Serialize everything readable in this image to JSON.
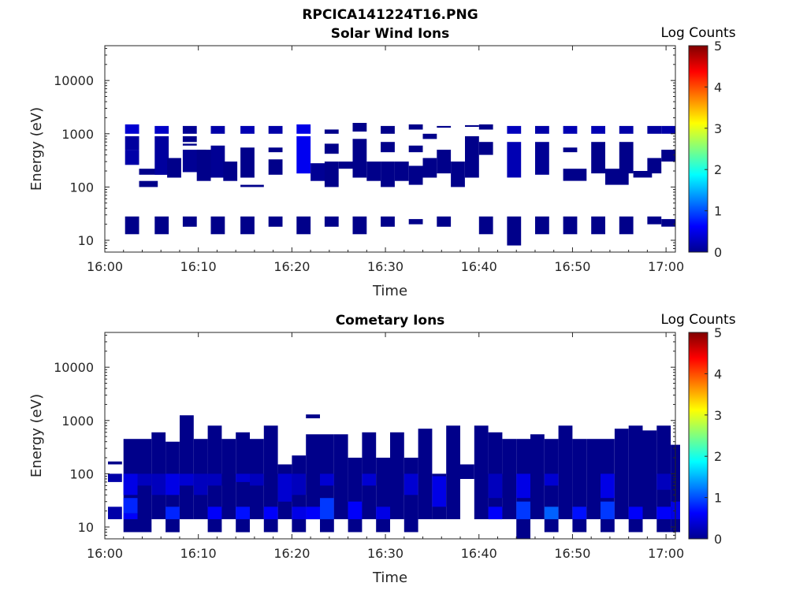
{
  "figure_title": "RPCICA141224T16.PNG",
  "colors": {
    "cmap": "jet",
    "axis": "#262626",
    "background": "#ffffff"
  },
  "chart_data": [
    {
      "type": "heatmap",
      "title": "Solar Wind Ions",
      "xlabel": "Time",
      "ylabel": "Energy (eV)",
      "yscale": "log",
      "xlim": [
        "16:00",
        "17:01"
      ],
      "ylim": [
        6,
        45000
      ],
      "xticks": [
        "16:00",
        "16:10",
        "16:20",
        "16:30",
        "16:40",
        "16:50",
        "17:00"
      ],
      "yticks": [
        "10",
        "100",
        "1000",
        "10000"
      ],
      "colorbar": {
        "label": "Log Counts",
        "range": [
          0,
          5
        ],
        "ticks": [
          "0",
          "1",
          "2",
          "3",
          "4",
          "5"
        ]
      },
      "cells": [
        [
          "16:02:10",
          1.5,
          1000,
          1500,
          0.4
        ],
        [
          "16:02:10",
          1.5,
          500,
          900,
          0.15
        ],
        [
          "16:02:10",
          1.5,
          260,
          500,
          0.2
        ],
        [
          "16:02:10",
          1.5,
          13,
          28,
          0.05
        ],
        [
          "16:03:40",
          2,
          100,
          130,
          0.05
        ],
        [
          "16:03:40",
          3,
          170,
          220,
          0.05
        ],
        [
          "16:05:20",
          1.5,
          1000,
          1400,
          0.35
        ],
        [
          "16:05:20",
          1.5,
          170,
          900,
          0.15
        ],
        [
          "16:05:20",
          1.5,
          13,
          28,
          0.05
        ],
        [
          "16:06:40",
          1.5,
          150,
          350,
          0.05
        ],
        [
          "16:08:20",
          1.5,
          1000,
          1400,
          0.1
        ],
        [
          "16:08:20",
          1.5,
          700,
          900,
          0.05
        ],
        [
          "16:08:20",
          1.5,
          600,
          650,
          0.05
        ],
        [
          "16:08:20",
          2.5,
          190,
          500,
          0.1
        ],
        [
          "16:08:20",
          1.5,
          18,
          28,
          0.05
        ],
        [
          "16:09:50",
          1.5,
          130,
          500,
          0.05
        ],
        [
          "16:11:20",
          1.5,
          1000,
          1400,
          0.2
        ],
        [
          "16:11:20",
          1.5,
          150,
          600,
          0.1
        ],
        [
          "16:11:20",
          1.5,
          13,
          28,
          0.05
        ],
        [
          "16:12:40",
          1.5,
          130,
          300,
          0.05
        ],
        [
          "16:14:30",
          1.5,
          1000,
          1400,
          0.25
        ],
        [
          "16:14:30",
          1.5,
          150,
          550,
          0.05
        ],
        [
          "16:14:30",
          2.5,
          100,
          110,
          0.05
        ],
        [
          "16:14:30",
          1.5,
          13,
          28,
          0.05
        ],
        [
          "16:17:30",
          1.5,
          1000,
          1400,
          0.2
        ],
        [
          "16:17:30",
          1.5,
          450,
          550,
          0.05
        ],
        [
          "16:17:30",
          1.5,
          170,
          330,
          0.05
        ],
        [
          "16:17:30",
          1.5,
          18,
          28,
          0.05
        ],
        [
          "16:20:30",
          1.5,
          1000,
          1500,
          0.5
        ],
        [
          "16:20:30",
          1.5,
          180,
          900,
          0.55
        ],
        [
          "16:20:30",
          1.5,
          13,
          28,
          0.05
        ],
        [
          "16:22:00",
          2,
          130,
          280,
          0.1
        ],
        [
          "16:23:30",
          1.5,
          1000,
          1200,
          0.05
        ],
        [
          "16:23:30",
          1.5,
          420,
          650,
          0.05
        ],
        [
          "16:23:30",
          1.5,
          100,
          300,
          0.05
        ],
        [
          "16:23:30",
          1.5,
          18,
          28,
          0.05
        ],
        [
          "16:25:00",
          1.5,
          220,
          300,
          0.05
        ],
        [
          "16:26:30",
          1.5,
          1100,
          1600,
          0.05
        ],
        [
          "16:26:30",
          1.5,
          150,
          800,
          0.05
        ],
        [
          "16:26:30",
          1.5,
          13,
          28,
          0.05
        ],
        [
          "16:28:00",
          1.5,
          130,
          300,
          0.05
        ],
        [
          "16:29:30",
          1.5,
          1000,
          1400,
          0.05
        ],
        [
          "16:29:30",
          1.5,
          450,
          700,
          0.05
        ],
        [
          "16:29:30",
          1.5,
          100,
          300,
          0.05
        ],
        [
          "16:29:30",
          1.5,
          18,
          28,
          0.05
        ],
        [
          "16:31:00",
          1.5,
          130,
          300,
          0.05
        ],
        [
          "16:32:30",
          1.5,
          1200,
          1500,
          0.05
        ],
        [
          "16:32:30",
          1.5,
          450,
          600,
          0.05
        ],
        [
          "16:32:30",
          1.5,
          110,
          250,
          0.05
        ],
        [
          "16:32:30",
          1.5,
          20,
          25,
          0.05
        ],
        [
          "16:34:00",
          1.5,
          800,
          1000,
          0.05
        ],
        [
          "16:34:00",
          1.5,
          150,
          350,
          0.05
        ],
        [
          "16:35:30",
          1.5,
          1300,
          1400,
          0.05
        ],
        [
          "16:35:30",
          1.5,
          180,
          500,
          0.05
        ],
        [
          "16:35:30",
          1.5,
          18,
          28,
          0.05
        ],
        [
          "16:37:00",
          1.5,
          100,
          300,
          0.05
        ],
        [
          "16:38:30",
          1.5,
          1350,
          1450,
          0.05
        ],
        [
          "16:38:30",
          1.5,
          150,
          900,
          0.05
        ],
        [
          "16:40:00",
          1.5,
          1200,
          1500,
          0.05
        ],
        [
          "16:40:00",
          1.5,
          400,
          700,
          0.05
        ],
        [
          "16:40:00",
          1.5,
          13,
          28,
          0.05
        ],
        [
          "16:43:00",
          1.5,
          1000,
          1400,
          0.3
        ],
        [
          "16:43:00",
          1.5,
          150,
          700,
          0.25
        ],
        [
          "16:43:00",
          1.5,
          8,
          28,
          0.05
        ],
        [
          "16:46:00",
          1.5,
          1000,
          1400,
          0.2
        ],
        [
          "16:46:00",
          1.5,
          170,
          700,
          0.1
        ],
        [
          "16:46:00",
          1.5,
          13,
          28,
          0.05
        ],
        [
          "16:49:00",
          1.5,
          1000,
          1400,
          0.25
        ],
        [
          "16:49:00",
          1.5,
          450,
          550,
          0.05
        ],
        [
          "16:49:00",
          2.5,
          130,
          220,
          0.05
        ],
        [
          "16:49:00",
          1.5,
          13,
          28,
          0.05
        ],
        [
          "16:52:00",
          1.5,
          1000,
          1400,
          0.25
        ],
        [
          "16:52:00",
          1.5,
          180,
          700,
          0.05
        ],
        [
          "16:52:00",
          1.5,
          13,
          28,
          0.05
        ],
        [
          "16:53:30",
          2.5,
          110,
          220,
          0.05
        ],
        [
          "16:55:00",
          1.5,
          1000,
          1400,
          0.2
        ],
        [
          "16:55:00",
          1.5,
          180,
          700,
          0.05
        ],
        [
          "16:55:00",
          1.5,
          13,
          28,
          0.05
        ],
        [
          "16:56:30",
          2,
          150,
          200,
          0.05
        ],
        [
          "16:58:00",
          1.5,
          1000,
          1400,
          0.15
        ],
        [
          "16:58:00",
          1.5,
          180,
          350,
          0.05
        ],
        [
          "16:58:00",
          1.5,
          20,
          28,
          0.05
        ],
        [
          "16:59:30",
          1.5,
          1000,
          1400,
          0.2
        ],
        [
          "16:59:30",
          1.5,
          300,
          500,
          0.05
        ],
        [
          "16:59:30",
          1.5,
          18,
          25,
          0.05
        ]
      ]
    },
    {
      "type": "heatmap",
      "title": "Cometary Ions",
      "xlabel": "Time",
      "ylabel": "Energy (eV)",
      "yscale": "log",
      "xlim": [
        "16:00",
        "17:01"
      ],
      "ylim": [
        6,
        45000
      ],
      "xticks": [
        "16:00",
        "16:10",
        "16:20",
        "16:30",
        "16:40",
        "16:50",
        "17:00"
      ],
      "yticks": [
        "10",
        "100",
        "1000",
        "10000"
      ],
      "colorbar": {
        "label": "Log Counts",
        "range": [
          0,
          5
        ],
        "ticks": [
          "0",
          "1",
          "2",
          "3",
          "4",
          "5"
        ]
      },
      "cells": [
        [
          "16:00:20",
          1.5,
          150,
          170,
          0.05
        ],
        [
          "16:00:20",
          1.5,
          70,
          100,
          0.2
        ],
        [
          "16:00:20",
          1.5,
          14,
          24,
          0.2
        ],
        [
          "16:02:00",
          1.5,
          8,
          450,
          0.05
        ],
        [
          "16:02:00",
          1.5,
          40,
          100,
          0.5
        ],
        [
          "16:02:00",
          1.5,
          18,
          35,
          0.8
        ],
        [
          "16:02:00",
          1.5,
          14,
          18,
          0.6
        ],
        [
          "16:03:30",
          1.5,
          8,
          450,
          0.05
        ],
        [
          "16:03:30",
          1.5,
          60,
          100,
          0.3
        ],
        [
          "16:05:00",
          1.5,
          14,
          600,
          0.05
        ],
        [
          "16:05:00",
          1.5,
          40,
          100,
          0.3
        ],
        [
          "16:06:30",
          1.5,
          8,
          400,
          0.05
        ],
        [
          "16:06:30",
          1.5,
          14,
          24,
          0.8
        ],
        [
          "16:06:30",
          1.5,
          40,
          100,
          0.5
        ],
        [
          "16:08:00",
          1.5,
          14,
          1250,
          0.05
        ],
        [
          "16:08:00",
          1.5,
          60,
          100,
          0.4
        ],
        [
          "16:09:30",
          1.5,
          14,
          450,
          0.05
        ],
        [
          "16:09:30",
          1.5,
          40,
          100,
          0.3
        ],
        [
          "16:11:00",
          1.5,
          8,
          800,
          0.05
        ],
        [
          "16:11:00",
          1.5,
          14,
          24,
          0.6
        ],
        [
          "16:11:00",
          1.5,
          60,
          100,
          0.3
        ],
        [
          "16:12:30",
          1.5,
          14,
          450,
          0.05
        ],
        [
          "16:14:00",
          1.5,
          8,
          600,
          0.05
        ],
        [
          "16:14:00",
          1.5,
          14,
          24,
          0.7
        ],
        [
          "16:14:00",
          1.5,
          70,
          100,
          0.4
        ],
        [
          "16:15:30",
          1.5,
          14,
          450,
          0.05
        ],
        [
          "16:15:30",
          1.5,
          60,
          100,
          0.3
        ],
        [
          "16:17:00",
          1.5,
          8,
          800,
          0.05
        ],
        [
          "16:17:00",
          1.5,
          14,
          24,
          0.6
        ],
        [
          "16:18:30",
          1.5,
          14,
          150,
          0.05
        ],
        [
          "16:18:30",
          1.5,
          30,
          100,
          0.4
        ],
        [
          "16:20:00",
          1.5,
          8,
          220,
          0.05
        ],
        [
          "16:20:00",
          1.5,
          14,
          24,
          0.5
        ],
        [
          "16:20:00",
          1.5,
          40,
          100,
          0.3
        ],
        [
          "16:21:30",
          1.5,
          1100,
          1300,
          0.05
        ],
        [
          "16:21:30",
          1.5,
          14,
          550,
          0.05
        ],
        [
          "16:21:30",
          1.5,
          14,
          24,
          0.6
        ],
        [
          "16:23:00",
          1.5,
          8,
          550,
          0.05
        ],
        [
          "16:23:00",
          1.5,
          14,
          35,
          0.9
        ],
        [
          "16:23:00",
          1.5,
          60,
          100,
          0.4
        ],
        [
          "16:24:30",
          1.5,
          14,
          550,
          0.05
        ],
        [
          "16:26:00",
          1.5,
          8,
          200,
          0.05
        ],
        [
          "16:26:00",
          1.5,
          14,
          30,
          0.6
        ],
        [
          "16:27:30",
          1.5,
          14,
          600,
          0.05
        ],
        [
          "16:27:30",
          1.5,
          60,
          100,
          0.4
        ],
        [
          "16:29:00",
          1.5,
          8,
          200,
          0.05
        ],
        [
          "16:29:00",
          1.5,
          14,
          24,
          0.5
        ],
        [
          "16:30:30",
          1.5,
          14,
          600,
          0.05
        ],
        [
          "16:32:00",
          1.5,
          8,
          200,
          0.05
        ],
        [
          "16:32:00",
          1.5,
          40,
          100,
          0.4
        ],
        [
          "16:33:30",
          1.5,
          14,
          700,
          0.05
        ],
        [
          "16:35:00",
          1.5,
          14,
          100,
          0.05
        ],
        [
          "16:35:00",
          1.5,
          24,
          90,
          0.5
        ],
        [
          "16:36:30",
          1.5,
          14,
          800,
          0.05
        ],
        [
          "16:38:00",
          1.5,
          80,
          150,
          0.05
        ],
        [
          "16:39:30",
          1.5,
          14,
          800,
          0.05
        ],
        [
          "16:41:00",
          1.5,
          14,
          600,
          0.05
        ],
        [
          "16:41:00",
          1.5,
          14,
          24,
          0.6
        ],
        [
          "16:41:00",
          1.5,
          35,
          100,
          0.3
        ],
        [
          "16:42:30",
          1.5,
          14,
          450,
          0.05
        ],
        [
          "16:44:00",
          1.5,
          6,
          450,
          0.05
        ],
        [
          "16:44:00",
          1.5,
          14,
          30,
          0.9
        ],
        [
          "16:44:00",
          1.5,
          35,
          100,
          0.5
        ],
        [
          "16:45:30",
          1.5,
          14,
          550,
          0.05
        ],
        [
          "16:47:00",
          1.5,
          8,
          450,
          0.05
        ],
        [
          "16:47:00",
          1.5,
          14,
          24,
          1.1
        ],
        [
          "16:47:00",
          1.5,
          60,
          100,
          0.4
        ],
        [
          "16:48:30",
          1.5,
          14,
          800,
          0.05
        ],
        [
          "16:50:00",
          1.5,
          8,
          450,
          0.05
        ],
        [
          "16:50:00",
          1.5,
          14,
          24,
          0.7
        ],
        [
          "16:51:30",
          1.5,
          14,
          450,
          0.05
        ],
        [
          "16:53:00",
          1.5,
          8,
          450,
          0.05
        ],
        [
          "16:53:00",
          1.5,
          14,
          30,
          0.9
        ],
        [
          "16:53:00",
          1.5,
          35,
          100,
          0.5
        ],
        [
          "16:54:30",
          1.5,
          14,
          700,
          0.05
        ],
        [
          "16:56:00",
          1.5,
          8,
          800,
          0.05
        ],
        [
          "16:56:00",
          1.5,
          14,
          24,
          0.6
        ],
        [
          "16:57:30",
          1.5,
          14,
          650,
          0.05
        ],
        [
          "16:59:00",
          1.5,
          8,
          800,
          0.05
        ],
        [
          "16:59:00",
          1.5,
          14,
          24,
          0.6
        ],
        [
          "16:59:00",
          1.5,
          50,
          100,
          0.3
        ],
        [
          "17:00:30",
          1.0,
          8,
          350,
          0.05
        ],
        [
          "17:00:30",
          1.0,
          14,
          30,
          0.5
        ]
      ]
    }
  ]
}
